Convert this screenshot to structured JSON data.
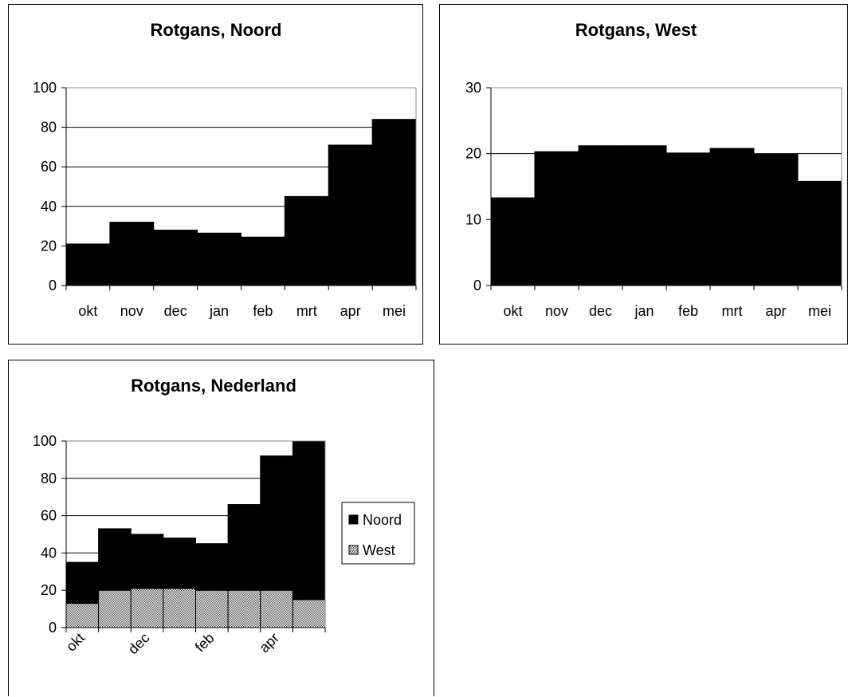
{
  "chart_data": [
    {
      "type": "bar",
      "title": "Rotgans, Noord",
      "categories": [
        "okt",
        "nov",
        "dec",
        "jan",
        "feb",
        "mrt",
        "apr",
        "mei"
      ],
      "values": [
        21,
        32,
        28,
        26.5,
        24.5,
        45,
        71,
        84
      ],
      "ylim": [
        0,
        100
      ],
      "yticks": [
        "0",
        "20",
        "40",
        "60",
        "80",
        "100"
      ],
      "grid": true,
      "color": "#000000"
    },
    {
      "type": "bar",
      "title": "Rotgans, West",
      "categories": [
        "okt",
        "nov",
        "dec",
        "jan",
        "feb",
        "mrt",
        "apr",
        "mei"
      ],
      "values": [
        13.3,
        20.3,
        21.2,
        21.2,
        20.1,
        20.8,
        19.9,
        15.8
      ],
      "ylim": [
        0,
        30
      ],
      "yticks": [
        "0",
        "10",
        "20",
        "30"
      ],
      "grid": true,
      "color": "#000000"
    },
    {
      "type": "bar",
      "stacked": true,
      "title": "Rotgans, Nederland",
      "categories": [
        "okt",
        "nov",
        "dec",
        "jan",
        "feb",
        "mrt",
        "apr",
        "mei"
      ],
      "shown_category_labels": [
        "okt",
        "dec",
        "feb",
        "apr"
      ],
      "series": [
        {
          "name": "West",
          "values": [
            13,
            20,
            21,
            21,
            20,
            20,
            20,
            15
          ]
        },
        {
          "name": "Noord",
          "values": [
            22,
            33,
            29,
            27,
            25,
            46,
            72,
            85
          ]
        }
      ],
      "ylim": [
        0,
        100
      ],
      "yticks": [
        "0",
        "20",
        "40",
        "60",
        "80",
        "100"
      ],
      "grid": true,
      "legend": "right",
      "legend_entries": [
        "Noord",
        "West"
      ]
    }
  ]
}
